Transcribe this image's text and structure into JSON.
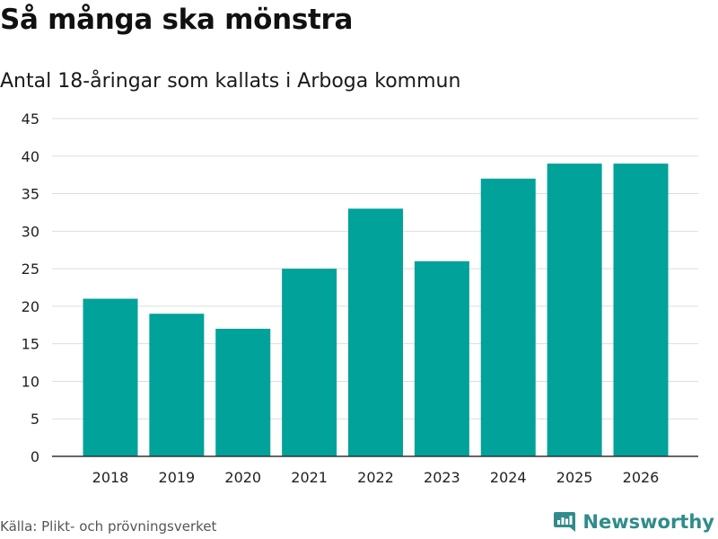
{
  "title": "Så många ska mönstra",
  "subtitle": "Antal 18-åringar som kallats i Arboga kommun",
  "source": "Källa: Plikt- och prövningsverket",
  "brand": {
    "name": "Newsworthy",
    "icon": "newsworthy-logo-icon",
    "color": "#2f8c8b"
  },
  "colors": {
    "bar": "#00a29a",
    "grid": "#dddddd",
    "axis": "#333333"
  },
  "chart_data": {
    "type": "bar",
    "title": "Så många ska mönstra",
    "subtitle": "Antal 18-åringar som kallats i Arboga kommun",
    "categories": [
      "2018",
      "2019",
      "2020",
      "2021",
      "2022",
      "2023",
      "2024",
      "2025",
      "2026"
    ],
    "values": [
      21,
      19,
      17,
      25,
      33,
      26,
      37,
      39,
      39
    ],
    "xlabel": "",
    "ylabel": "",
    "ylim": [
      0,
      45
    ],
    "yticks": [
      0,
      5,
      10,
      15,
      20,
      25,
      30,
      35,
      40,
      45
    ],
    "grid": true,
    "legend": "none"
  }
}
